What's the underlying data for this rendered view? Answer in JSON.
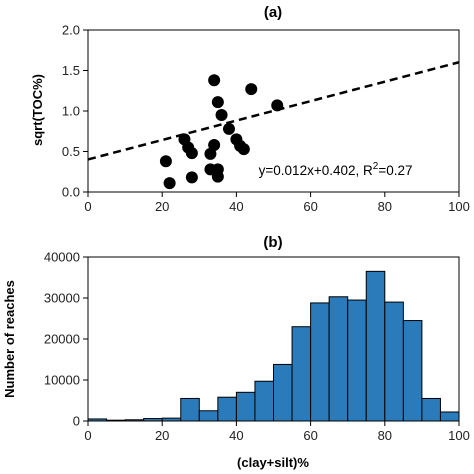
{
  "chart_data": [
    {
      "type": "scatter",
      "title": "(a)",
      "xlabel": "",
      "ylabel": "sqrt(TOC%)",
      "xlim": [
        0,
        100
      ],
      "ylim": [
        0,
        2.0
      ],
      "xticks": [
        "0",
        "20",
        "40",
        "60",
        "80",
        "100"
      ],
      "yticks": [
        "0.0",
        "0.5",
        "1.0",
        "1.5",
        "2.0"
      ],
      "grid": false,
      "marker_color": "#000000",
      "points": [
        {
          "x": 21,
          "y": 0.38
        },
        {
          "x": 22,
          "y": 0.11
        },
        {
          "x": 26,
          "y": 0.65
        },
        {
          "x": 27,
          "y": 0.55
        },
        {
          "x": 28,
          "y": 0.48
        },
        {
          "x": 28,
          "y": 0.18
        },
        {
          "x": 33,
          "y": 0.28
        },
        {
          "x": 33,
          "y": 0.47
        },
        {
          "x": 34,
          "y": 0.58
        },
        {
          "x": 34,
          "y": 1.38
        },
        {
          "x": 35,
          "y": 1.11
        },
        {
          "x": 35,
          "y": 0.28
        },
        {
          "x": 35,
          "y": 0.19
        },
        {
          "x": 36,
          "y": 0.95
        },
        {
          "x": 38,
          "y": 0.78
        },
        {
          "x": 40,
          "y": 0.65
        },
        {
          "x": 41,
          "y": 0.57
        },
        {
          "x": 42,
          "y": 0.53
        },
        {
          "x": 44,
          "y": 1.27
        },
        {
          "x": 51,
          "y": 1.07
        }
      ],
      "fit": {
        "slope": 0.012,
        "intercept": 0.402,
        "style": "dashed"
      },
      "annotation": {
        "prefix": "y=0.012x+0.402, R",
        "sup": "2",
        "suffix": "=0.27"
      }
    },
    {
      "type": "bar",
      "title": "(b)",
      "xlabel": "(clay+silt)%",
      "ylabel": "Number of reaches",
      "xlim": [
        0,
        100
      ],
      "ylim": [
        0,
        40000
      ],
      "xticks": [
        "0",
        "20",
        "40",
        "60",
        "80",
        "100"
      ],
      "yticks": [
        "0",
        "10000",
        "20000",
        "30000",
        "40000"
      ],
      "grid": false,
      "bar_color": "#2b7bba",
      "bin_width": 5,
      "bin_starts": [
        0,
        5,
        10,
        15,
        20,
        25,
        30,
        35,
        40,
        45,
        50,
        55,
        60,
        65,
        70,
        75,
        80,
        85,
        90,
        95
      ],
      "values": [
        500,
        200,
        300,
        600,
        700,
        5500,
        2500,
        5800,
        7000,
        9700,
        13800,
        23000,
        28800,
        30300,
        29500,
        36500,
        29000,
        24500,
        5500,
        2200
      ]
    }
  ]
}
